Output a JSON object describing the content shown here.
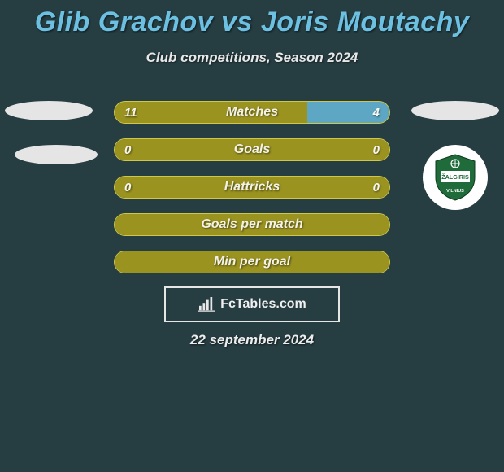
{
  "title": "Glib Grachov vs Joris Moutachy",
  "subtitle": "Club competitions, Season 2024",
  "date": "22 september 2024",
  "footer_brand": "FcTables.com",
  "colors": {
    "background": "#263d42",
    "title": "#6cc1e2",
    "left_bar": "#9b9320",
    "right_bar": "#5da7c5",
    "bar_border": "#cfc74a",
    "text": "#f2f2e6",
    "ellipse": "#e5e5e5",
    "footer_border": "#e6e6e6",
    "badge_bg": "#ffffff",
    "badge_green": "#1f6b3a",
    "badge_stripe": "#ffffff"
  },
  "club_right": {
    "name": "Žalgiris Vilnius",
    "text_top": "ŽALGIRIS",
    "text_bottom": "VILNIUS"
  },
  "rows": [
    {
      "label": "Matches",
      "left": "11",
      "right": "4",
      "left_pct": 70,
      "right_pct": 30
    },
    {
      "label": "Goals",
      "left": "0",
      "right": "0",
      "left_pct": 100,
      "right_pct": 0
    },
    {
      "label": "Hattricks",
      "left": "0",
      "right": "0",
      "left_pct": 100,
      "right_pct": 0
    },
    {
      "label": "Goals per match",
      "left": "",
      "right": "",
      "left_pct": 100,
      "right_pct": 0
    },
    {
      "label": "Min per goal",
      "left": "",
      "right": "",
      "left_pct": 100,
      "right_pct": 0
    }
  ]
}
